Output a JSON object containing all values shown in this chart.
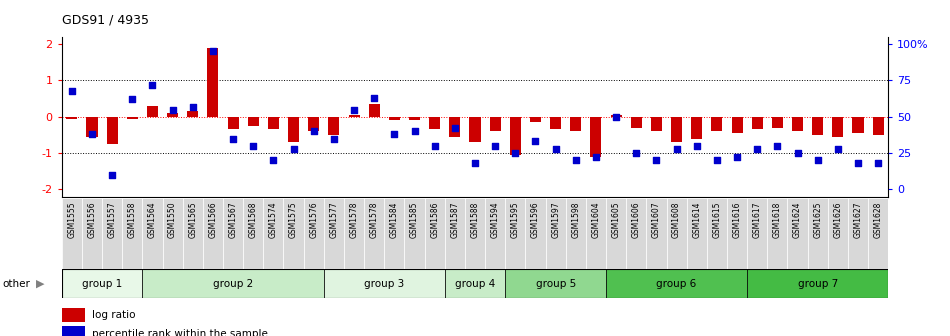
{
  "title": "GDS91 / 4935",
  "samples": [
    "GSM1555",
    "GSM1556",
    "GSM1557",
    "GSM1558",
    "GSM1564",
    "GSM1550",
    "GSM1565",
    "GSM1566",
    "GSM1567",
    "GSM1568",
    "GSM1574",
    "GSM1575",
    "GSM1576",
    "GSM1577",
    "GSM1578",
    "GSM1578",
    "GSM1584",
    "GSM1585",
    "GSM1586",
    "GSM1587",
    "GSM1588",
    "GSM1594",
    "GSM1595",
    "GSM1596",
    "GSM1597",
    "GSM1598",
    "GSM1604",
    "GSM1605",
    "GSM1606",
    "GSM1607",
    "GSM1608",
    "GSM1614",
    "GSM1615",
    "GSM1616",
    "GSM1617",
    "GSM1618",
    "GSM1624",
    "GSM1625",
    "GSM1626",
    "GSM1627",
    "GSM1628"
  ],
  "log_ratio": [
    -0.05,
    -0.55,
    -0.75,
    -0.05,
    0.3,
    0.1,
    0.15,
    1.9,
    -0.35,
    -0.25,
    -0.35,
    -0.7,
    -0.4,
    -0.5,
    0.05,
    0.35,
    -0.1,
    -0.1,
    -0.35,
    -0.55,
    -0.7,
    -0.4,
    -1.05,
    -0.15,
    -0.35,
    -0.4,
    -1.1,
    0.05,
    -0.3,
    -0.4,
    -0.7,
    -0.6,
    -0.4,
    -0.45,
    -0.35,
    -0.3,
    -0.4,
    -0.5,
    -0.55,
    -0.45,
    -0.5
  ],
  "percentile": [
    68,
    38,
    10,
    62,
    72,
    55,
    57,
    95,
    35,
    30,
    20,
    28,
    40,
    35,
    55,
    63,
    38,
    40,
    30,
    42,
    18,
    30,
    25,
    33,
    28,
    20,
    22,
    50,
    25,
    20,
    28,
    30,
    20,
    22,
    28,
    30,
    25,
    20,
    28,
    18,
    18
  ],
  "groups": [
    {
      "name": "group 1",
      "start": 0,
      "end": 4,
      "color": "#e8f8e8"
    },
    {
      "name": "group 2",
      "start": 4,
      "end": 13,
      "color": "#c8ecc8"
    },
    {
      "name": "group 3",
      "start": 13,
      "end": 19,
      "color": "#e0f4e0"
    },
    {
      "name": "group 4",
      "start": 19,
      "end": 22,
      "color": "#c8ecc8"
    },
    {
      "name": "group 5",
      "start": 22,
      "end": 27,
      "color": "#90d890"
    },
    {
      "name": "group 6",
      "start": 27,
      "end": 34,
      "color": "#50c050"
    },
    {
      "name": "group 7",
      "start": 34,
      "end": 41,
      "color": "#44bb44"
    }
  ],
  "bar_color": "#cc0000",
  "scatter_color": "#0000cc",
  "bg_color": "#ffffff",
  "xtick_bg": "#e0e0e0",
  "ylim": [
    -2.2,
    2.2
  ],
  "yticks_left": [
    -2,
    -1,
    0,
    1,
    2
  ],
  "ytick_labels_left": [
    "-2",
    "-1",
    "0",
    "1",
    "2"
  ],
  "ytick_labels_right": [
    "0",
    "25",
    "50",
    "75",
    "100%"
  ]
}
